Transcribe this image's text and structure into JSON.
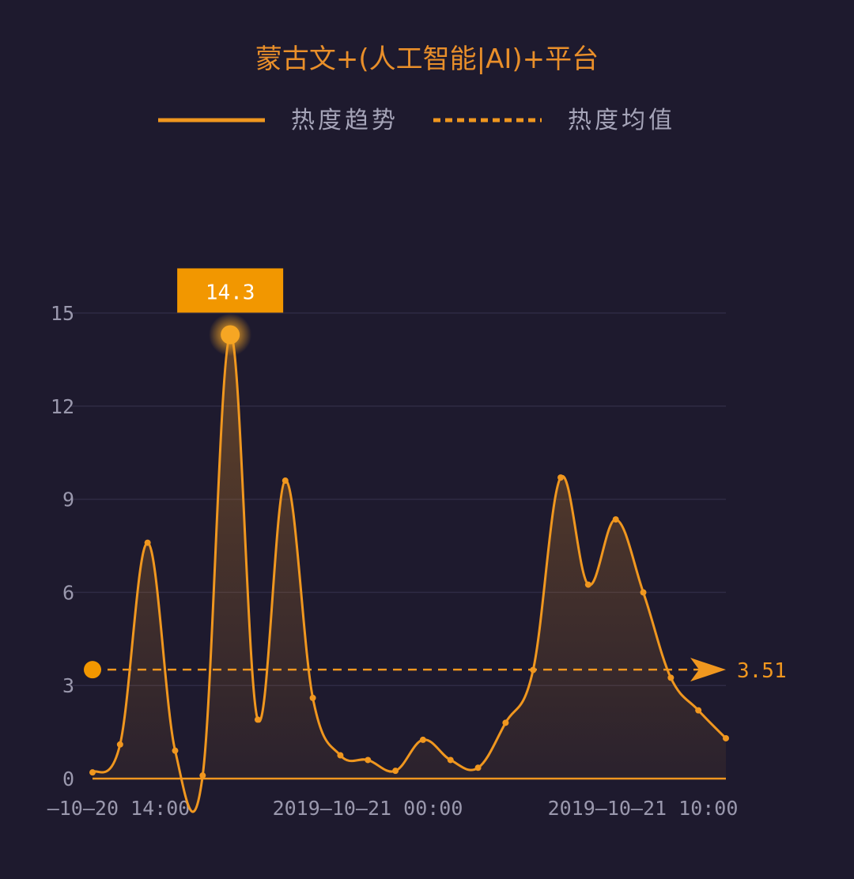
{
  "chart_data": {
    "type": "line",
    "title": "蒙古文+(人工智能|AI)+平台",
    "legend": [
      {
        "label": "热度趋势",
        "style": "solid"
      },
      {
        "label": "热度均值",
        "style": "dashed"
      }
    ],
    "legend_position": "top-center",
    "y_ticks": [
      "0",
      "3",
      "6",
      "9",
      "12",
      "15"
    ],
    "ylim": [
      0,
      15
    ],
    "x_tick_labels": [
      "—10—20 14:00",
      "2019—10—21 00:00",
      "2019—10—21 10:00"
    ],
    "series": [
      {
        "values": [
          0.2,
          1.1,
          7.6,
          0.9,
          0.1,
          14.3,
          1.9,
          9.6,
          2.6,
          0.75,
          0.6,
          0.25,
          1.25,
          0.6,
          0.35,
          1.8,
          3.5,
          9.7,
          6.25,
          8.35,
          6.0,
          3.25,
          2.2,
          1.3
        ]
      }
    ],
    "average": 3.51,
    "average_label": "3.51",
    "peak_label": "14.3",
    "grid": true,
    "colors": {
      "background": "#1e1a2e",
      "line": "#f0971f",
      "title": "#e98f2a",
      "legend_text": "#a5a4b8",
      "axis_text": "#9a98ad",
      "grid": "#2f2b44"
    }
  }
}
